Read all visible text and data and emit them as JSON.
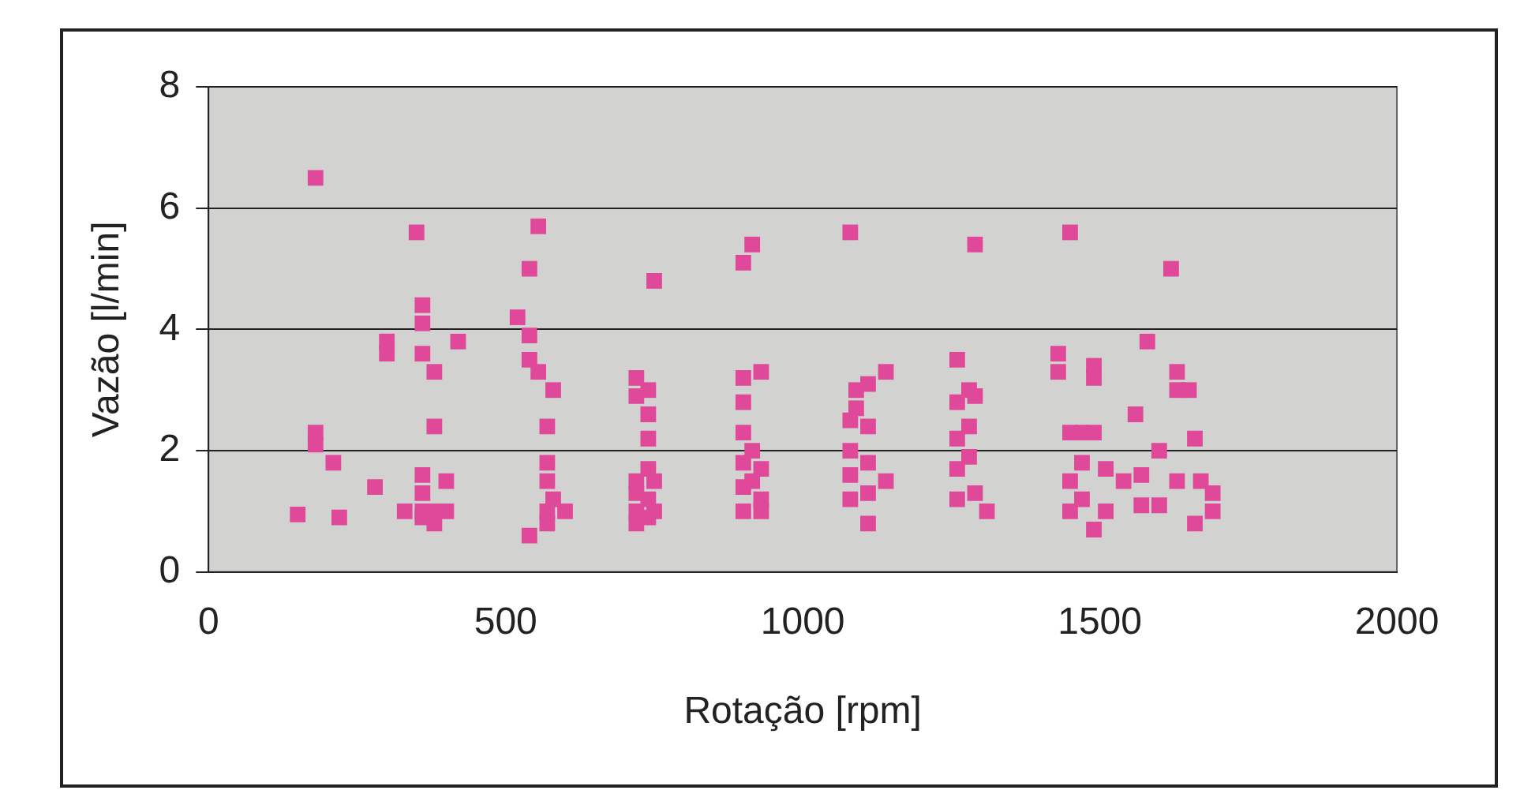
{
  "chart_data": {
    "type": "scatter",
    "xlabel": "Rotação [rpm]",
    "ylabel": "Vazão [l/min]",
    "xlim": [
      0,
      2000
    ],
    "xticks": [
      0,
      500,
      1000,
      1500,
      2000
    ],
    "ylim": [
      0,
      8
    ],
    "yticks": [
      0,
      2,
      4,
      6,
      8
    ],
    "grid": "y",
    "marker": "square",
    "legend": false,
    "series": [
      {
        "color": "#e0489a",
        "x": [
          180,
          180,
          180,
          150,
          210,
          220,
          280,
          300,
          300,
          350,
          360,
          360,
          360,
          360,
          360,
          360,
          360,
          380,
          380,
          380,
          380,
          400,
          400,
          420,
          330,
          520,
          540,
          540,
          540,
          540,
          555,
          555,
          570,
          570,
          570,
          570,
          570,
          580,
          580,
          600,
          720,
          720,
          720,
          720,
          720,
          720,
          740,
          740,
          740,
          740,
          740,
          740,
          750,
          750,
          750,
          900,
          900,
          900,
          900,
          900,
          900,
          900,
          915,
          915,
          915,
          930,
          930,
          930,
          930,
          1080,
          1080,
          1080,
          1080,
          1080,
          1090,
          1090,
          1110,
          1110,
          1110,
          1110,
          1110,
          1140,
          1140,
          1260,
          1260,
          1260,
          1260,
          1260,
          1280,
          1280,
          1280,
          1290,
          1290,
          1290,
          1310,
          1430,
          1430,
          1450,
          1450,
          1450,
          1450,
          1470,
          1470,
          1470,
          1490,
          1490,
          1490,
          1490,
          1510,
          1510,
          1540,
          1570,
          1570,
          1560,
          1580,
          1600,
          1600,
          1620,
          1630,
          1630,
          1630,
          1650,
          1660,
          1660,
          1670,
          1690,
          1690
        ],
        "values": [
          6.5,
          2.3,
          2.1,
          0.95,
          1.8,
          0.9,
          1.4,
          3.8,
          3.6,
          5.6,
          4.4,
          4.1,
          3.6,
          1.6,
          1.0,
          0.9,
          1.3,
          3.3,
          2.4,
          1.0,
          0.8,
          1.5,
          1.0,
          3.8,
          1.0,
          4.2,
          5.0,
          3.9,
          3.5,
          0.6,
          5.7,
          3.3,
          2.4,
          1.8,
          1.5,
          1.0,
          0.8,
          3.0,
          1.2,
          1.0,
          3.2,
          2.9,
          1.5,
          1.3,
          1.0,
          0.8,
          3.0,
          2.6,
          2.2,
          1.7,
          1.2,
          0.9,
          4.8,
          1.5,
          1.0,
          5.1,
          3.2,
          2.8,
          2.3,
          1.8,
          1.4,
          1.0,
          5.4,
          2.0,
          1.5,
          3.3,
          1.7,
          1.2,
          1.0,
          5.6,
          2.5,
          2.0,
          1.6,
          1.2,
          3.0,
          2.7,
          3.1,
          2.4,
          1.8,
          1.3,
          0.8,
          3.3,
          1.5,
          3.5,
          2.8,
          2.2,
          1.7,
          1.2,
          3.0,
          2.4,
          1.9,
          5.4,
          2.9,
          1.3,
          1.0,
          3.6,
          3.3,
          5.6,
          2.3,
          1.5,
          1.0,
          2.3,
          1.8,
          1.2,
          3.4,
          3.2,
          2.3,
          0.7,
          1.7,
          1.0,
          1.5,
          1.1,
          1.6,
          2.6,
          3.8,
          1.1,
          2.0,
          5.0,
          3.3,
          3.0,
          1.5,
          3.0,
          0.8,
          2.2,
          1.5,
          1.0,
          1.3
        ]
      }
    ]
  }
}
